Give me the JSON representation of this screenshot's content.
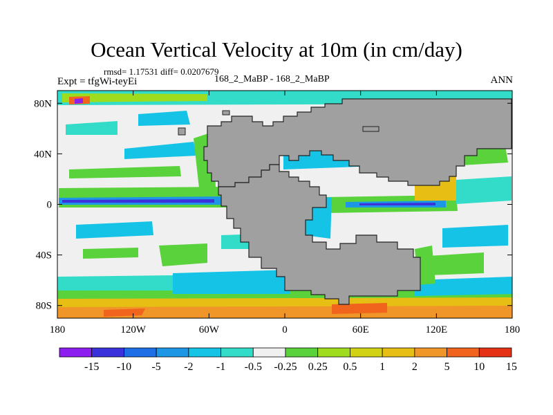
{
  "chart_data": {
    "type": "heatmap",
    "title": "Ocean Vertical Velocity at 10m (in cm/day)",
    "stats_line": "rmsd= 1.17531 diff= 0.0207679",
    "left_label": "Expt = tfgWi-teyEi",
    "center_label": "168_2_MaBP - 168_2_MaBP",
    "right_label": "ANN",
    "x_range": [
      -180,
      180
    ],
    "y_range": [
      -90,
      90
    ],
    "x_ticks": [
      {
        "value": -180,
        "label": "180"
      },
      {
        "value": -120,
        "label": "120W"
      },
      {
        "value": -60,
        "label": "60W"
      },
      {
        "value": 0,
        "label": "0"
      },
      {
        "value": 60,
        "label": "60E"
      },
      {
        "value": 120,
        "label": "120E"
      },
      {
        "value": 180,
        "label": "180"
      }
    ],
    "y_ticks": [
      {
        "value": 80,
        "label": "80N"
      },
      {
        "value": 40,
        "label": "40N"
      },
      {
        "value": 0,
        "label": "0"
      },
      {
        "value": -40,
        "label": "40S"
      },
      {
        "value": -80,
        "label": "80S"
      }
    ],
    "colorbar": {
      "levels": [
        "-15",
        "-10",
        "-5",
        "-2",
        "-1",
        "-0.5",
        "-0.25",
        "0.25",
        "0.5",
        "1",
        "2",
        "5",
        "10",
        "15"
      ],
      "colors": [
        "#8c1ef0",
        "#3c32dc",
        "#1e6ee6",
        "#1e96e6",
        "#14c3e6",
        "#32dcc8",
        "#f0f0f0",
        "#5ad23c",
        "#a0dc1e",
        "#d2d214",
        "#e6be14",
        "#f09628",
        "#f0641e",
        "#e63214"
      ]
    },
    "land_color": "#a0a0a0"
  }
}
